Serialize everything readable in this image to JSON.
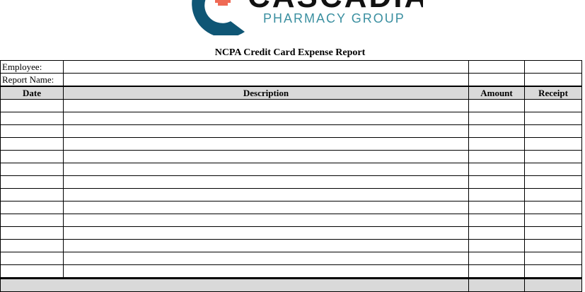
{
  "logo": {
    "brand": "CASCADIA",
    "sub": "PHARMACY GROUP",
    "colors": {
      "circle": "#0f5675",
      "cross": "#ef6a55",
      "sub": "#3a8fa0"
    }
  },
  "title": "NCPA Credit Card Expense Report",
  "fields": [
    {
      "label": "Employee:"
    },
    {
      "label": "Report Name:"
    }
  ],
  "columns": [
    "Date",
    "Description",
    "Amount",
    "Receipt"
  ],
  "row_count": 14
}
